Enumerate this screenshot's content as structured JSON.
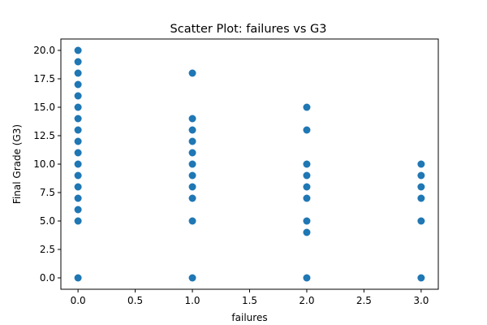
{
  "chart_data": {
    "type": "scatter",
    "title": "Scatter Plot: failures vs G3",
    "xlabel": "failures",
    "ylabel": "Final Grade (G3)",
    "xlim": [
      -0.15,
      3.15
    ],
    "ylim": [
      -1.0,
      21.0
    ],
    "x_ticks": [
      0.0,
      0.5,
      1.0,
      1.5,
      2.0,
      2.5,
      3.0
    ],
    "x_tick_labels": [
      "0.0",
      "0.5",
      "1.0",
      "1.5",
      "2.0",
      "2.5",
      "3.0"
    ],
    "y_ticks": [
      0.0,
      2.5,
      5.0,
      7.5,
      10.0,
      12.5,
      15.0,
      17.5,
      20.0
    ],
    "y_tick_labels": [
      "0.0",
      "2.5",
      "5.0",
      "7.5",
      "10.0",
      "12.5",
      "15.0",
      "17.5",
      "20.0"
    ],
    "grid": false,
    "marker_color": "#1f77b4",
    "series": [
      {
        "points": [
          [
            0,
            0
          ],
          [
            0,
            5
          ],
          [
            0,
            6
          ],
          [
            0,
            7
          ],
          [
            0,
            8
          ],
          [
            0,
            9
          ],
          [
            0,
            10
          ],
          [
            0,
            11
          ],
          [
            0,
            12
          ],
          [
            0,
            13
          ],
          [
            0,
            14
          ],
          [
            0,
            15
          ],
          [
            0,
            16
          ],
          [
            0,
            17
          ],
          [
            0,
            18
          ],
          [
            0,
            19
          ],
          [
            0,
            20
          ],
          [
            1,
            0
          ],
          [
            1,
            5
          ],
          [
            1,
            7
          ],
          [
            1,
            8
          ],
          [
            1,
            9
          ],
          [
            1,
            10
          ],
          [
            1,
            11
          ],
          [
            1,
            12
          ],
          [
            1,
            13
          ],
          [
            1,
            14
          ],
          [
            1,
            18
          ],
          [
            2,
            0
          ],
          [
            2,
            4
          ],
          [
            2,
            5
          ],
          [
            2,
            7
          ],
          [
            2,
            8
          ],
          [
            2,
            9
          ],
          [
            2,
            10
          ],
          [
            2,
            13
          ],
          [
            2,
            15
          ],
          [
            3,
            0
          ],
          [
            3,
            5
          ],
          [
            3,
            7
          ],
          [
            3,
            8
          ],
          [
            3,
            9
          ],
          [
            3,
            10
          ]
        ]
      }
    ]
  }
}
